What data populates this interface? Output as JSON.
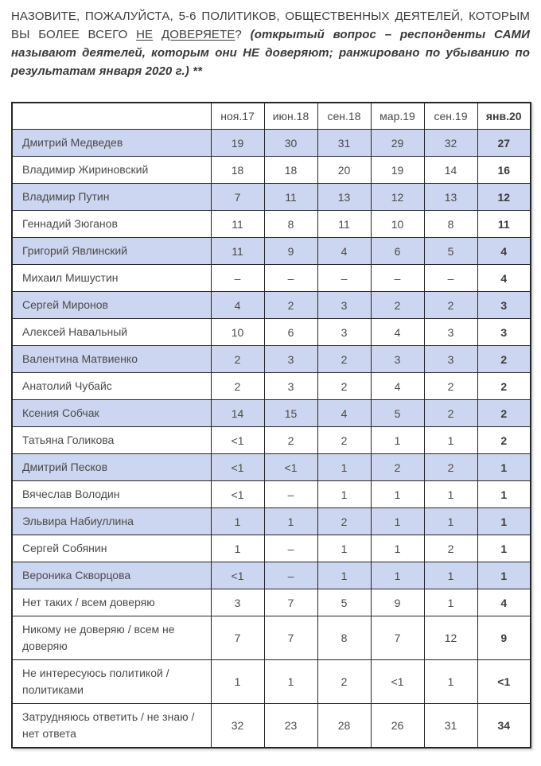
{
  "intro": {
    "part1": "НАЗОВИТЕ, ПОЖАЛУЙСТА, 5-6 ПОЛИТИКОВ, ОБЩЕСТВЕННЫХ ДЕЯТЕЛЕЙ, КОТОРЫМ ВЫ БОЛЕЕ ВСЕГО ",
    "underlined1": "НЕ",
    "separator": " ",
    "underlined2": "ДОВЕРЯЕТЕ",
    "part2": "? ",
    "note": "(открытый вопрос – респонденты САМИ называют деятелей, которым они НЕ доверяют; ранжировано по убыванию по результатам января 2020 г.) **"
  },
  "table": {
    "corner_label": "",
    "columns": [
      "ноя.17",
      "июн.18",
      "сен.18",
      "мар.19",
      "сен.19",
      "янв.20"
    ],
    "rows": [
      {
        "label": "Дмитрий Медведев",
        "values": [
          "19",
          "30",
          "31",
          "29",
          "32",
          "27"
        ],
        "shaded": true
      },
      {
        "label": "Владимир Жириновский",
        "values": [
          "18",
          "18",
          "20",
          "19",
          "14",
          "16"
        ],
        "shaded": false
      },
      {
        "label": "Владимир Путин",
        "values": [
          "7",
          "11",
          "13",
          "12",
          "13",
          "12"
        ],
        "shaded": true
      },
      {
        "label": "Геннадий Зюганов",
        "values": [
          "11",
          "8",
          "11",
          "10",
          "8",
          "11"
        ],
        "shaded": false
      },
      {
        "label": "Григорий Явлинский",
        "values": [
          "11",
          "9",
          "4",
          "6",
          "5",
          "4"
        ],
        "shaded": true
      },
      {
        "label": "Михаил Мишустин",
        "values": [
          "–",
          "–",
          "–",
          "–",
          "–",
          "4"
        ],
        "shaded": false
      },
      {
        "label": "Сергей Миронов",
        "values": [
          "4",
          "2",
          "3",
          "2",
          "2",
          "3"
        ],
        "shaded": true
      },
      {
        "label": "Алексей Навальный",
        "values": [
          "10",
          "6",
          "3",
          "4",
          "3",
          "3"
        ],
        "shaded": false
      },
      {
        "label": "Валентина Матвиенко",
        "values": [
          "2",
          "3",
          "2",
          "3",
          "3",
          "2"
        ],
        "shaded": true
      },
      {
        "label": "Анатолий Чубайс",
        "values": [
          "2",
          "3",
          "2",
          "4",
          "2",
          "2"
        ],
        "shaded": false
      },
      {
        "label": "Ксения Собчак",
        "values": [
          "14",
          "15",
          "4",
          "5",
          "2",
          "2"
        ],
        "shaded": true
      },
      {
        "label": "Татьяна Голикова",
        "values": [
          "<1",
          "2",
          "2",
          "1",
          "1",
          "2"
        ],
        "shaded": false
      },
      {
        "label": "Дмитрий Песков",
        "values": [
          "<1",
          "<1",
          "1",
          "2",
          "2",
          "1"
        ],
        "shaded": true
      },
      {
        "label": "Вячеслав Володин",
        "values": [
          "<1",
          "–",
          "1",
          "1",
          "1",
          "1"
        ],
        "shaded": false
      },
      {
        "label": "Эльвира Набиуллина",
        "values": [
          "1",
          "1",
          "2",
          "1",
          "1",
          "1"
        ],
        "shaded": true
      },
      {
        "label": "Сергей Собянин",
        "values": [
          "1",
          "–",
          "1",
          "1",
          "2",
          "1"
        ],
        "shaded": false
      },
      {
        "label": "Вероника Скворцова",
        "values": [
          "<1",
          "–",
          "1",
          "1",
          "1",
          "1"
        ],
        "shaded": true
      },
      {
        "label": "Нет таких / всем доверяю",
        "values": [
          "3",
          "7",
          "5",
          "9",
          "1",
          "4"
        ],
        "shaded": false
      },
      {
        "label": "Никому не доверяю / всем не доверяю",
        "values": [
          "7",
          "7",
          "8",
          "7",
          "12",
          "9"
        ],
        "shaded": false
      },
      {
        "label": "Не интересуюсь политикой / политиками",
        "values": [
          "1",
          "1",
          "2",
          "<1",
          "1",
          "<1"
        ],
        "shaded": false
      },
      {
        "label": "Затрудняюсь ответить / не знаю / нет ответа",
        "values": [
          "32",
          "23",
          "28",
          "26",
          "31",
          "34"
        ],
        "shaded": false
      }
    ]
  },
  "colors": {
    "row_shade": "#cdd6f0",
    "table_border": "#262626",
    "text": "#4a4a4a"
  }
}
